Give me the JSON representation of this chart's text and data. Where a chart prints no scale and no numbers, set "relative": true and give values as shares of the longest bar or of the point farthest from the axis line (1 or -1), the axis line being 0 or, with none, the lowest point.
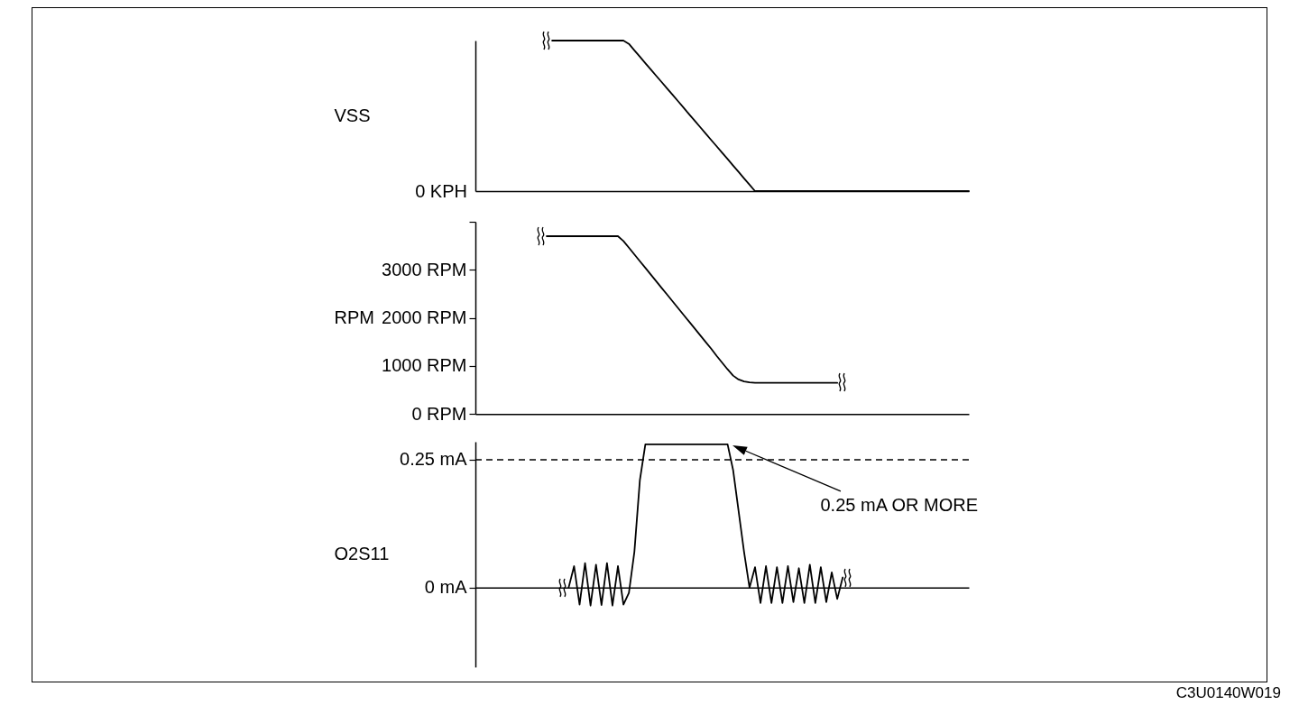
{
  "chart_data": [
    {
      "type": "line",
      "ylabel": "VSS",
      "relative": true,
      "tick_labels": false,
      "categories": [
        null,
        null,
        null,
        null,
        null,
        null,
        null,
        null,
        null,
        null,
        null,
        null,
        null,
        null,
        null,
        null,
        null,
        null,
        null,
        null,
        null,
        null,
        null,
        null,
        null,
        null,
        null,
        null,
        null,
        null,
        null,
        null,
        null,
        null,
        null,
        null,
        null,
        null,
        null,
        null,
        null,
        null,
        null,
        null,
        null,
        null,
        null,
        null,
        null,
        null,
        null,
        null,
        null,
        null,
        null,
        null,
        null,
        null,
        null,
        null,
        null,
        null,
        null,
        null,
        null,
        null,
        null,
        null,
        null,
        null,
        null,
        null,
        null,
        null,
        null,
        null,
        null,
        null,
        null,
        null,
        null,
        null,
        null,
        null,
        null,
        null,
        null,
        null,
        null,
        null,
        null
      ],
      "series": [
        {
          "color": "#000000",
          "values": [
            null,
            null,
            null,
            null,
            null,
            null,
            null,
            null,
            null,
            null,
            null,
            null,
            null,
            null,
            1,
            1,
            1,
            1,
            1,
            1,
            1,
            1,
            1,
            1,
            1,
            1,
            1,
            1,
            0.978,
            0.935,
            0.893,
            0.85,
            0.808,
            0.765,
            0.723,
            0.68,
            0.638,
            0.596,
            0.553,
            0.51,
            0.468,
            0.425,
            0.383,
            0.34,
            0.298,
            0.255,
            0.213,
            0.17,
            0.128,
            0.085,
            0.043,
            0,
            0,
            0,
            0,
            0,
            0,
            0,
            0,
            0,
            0,
            0,
            0,
            0,
            0,
            0,
            0,
            0,
            0,
            0,
            0,
            0,
            0,
            0,
            0,
            0,
            0,
            0,
            0,
            0,
            0,
            0,
            0,
            0,
            0,
            0,
            0,
            0,
            0,
            0,
            0
          ]
        }
      ],
      "annotations": [
        "0 KPH"
      ]
    },
    {
      "type": "line",
      "ylabel": "RPM",
      "tick_labels": "y",
      "categories": [
        null,
        null,
        null,
        null,
        null,
        null,
        null,
        null,
        null,
        null,
        null,
        null,
        null,
        null,
        null,
        null,
        null,
        null,
        null,
        null,
        null,
        null,
        null,
        null,
        null,
        null,
        null,
        null,
        null,
        null,
        null,
        null,
        null,
        null,
        null,
        null,
        null,
        null,
        null,
        null,
        null,
        null,
        null,
        null,
        null,
        null,
        null,
        null,
        null,
        null,
        null,
        null,
        null,
        null,
        null,
        null,
        null,
        null,
        null,
        null,
        null,
        null,
        null,
        null,
        null,
        null,
        null,
        null,
        null,
        null,
        null,
        null,
        null,
        null,
        null,
        null,
        null,
        null,
        null,
        null,
        null,
        null,
        null,
        null,
        null,
        null,
        null,
        null,
        null,
        null,
        null
      ],
      "series": [
        {
          "color": "#000000",
          "values": [
            null,
            null,
            null,
            null,
            null,
            null,
            null,
            null,
            null,
            null,
            null,
            null,
            null,
            3700,
            3700,
            3700,
            3700,
            3700,
            3700,
            3700,
            3700,
            3700,
            3700,
            3700,
            3700,
            3700,
            3700,
            3600,
            3460,
            3320,
            3180,
            3040,
            2900,
            2760,
            2620,
            2480,
            2340,
            2200,
            2060,
            1920,
            1780,
            1640,
            1500,
            1360,
            1210,
            1070,
            930,
            800,
            720,
            680,
            660,
            650,
            650,
            650,
            650,
            650,
            650,
            650,
            650,
            650,
            650,
            650,
            650,
            650,
            650,
            650,
            650,
            null,
            null,
            null,
            null,
            null,
            null,
            null,
            null,
            null,
            null,
            null,
            null,
            null,
            null,
            null,
            null,
            null,
            null,
            null,
            null,
            null,
            null,
            null,
            null
          ]
        }
      ],
      "ylim": [
        0,
        4000
      ],
      "yticks": [
        {
          "value": 0,
          "label": "0 RPM"
        },
        {
          "value": 1000,
          "label": "1000 RPM"
        },
        {
          "value": 2000,
          "label": "2000 RPM"
        },
        {
          "value": 3000,
          "label": "3000 RPM"
        },
        {
          "value": 4000,
          "label": null
        }
      ]
    },
    {
      "type": "line",
      "ylabel": "O2S11",
      "tick_labels": "y",
      "categories": [
        null,
        null,
        null,
        null,
        null,
        null,
        null,
        null,
        null,
        null,
        null,
        null,
        null,
        null,
        null,
        null,
        null,
        null,
        null,
        null,
        null,
        null,
        null,
        null,
        null,
        null,
        null,
        null,
        null,
        null,
        null,
        null,
        null,
        null,
        null,
        null,
        null,
        null,
        null,
        null,
        null,
        null,
        null,
        null,
        null,
        null,
        null,
        null,
        null,
        null,
        null,
        null,
        null,
        null,
        null,
        null,
        null,
        null,
        null,
        null,
        null,
        null,
        null,
        null,
        null,
        null,
        null,
        null,
        null,
        null,
        null,
        null,
        null,
        null,
        null,
        null,
        null,
        null,
        null,
        null,
        null,
        null,
        null,
        null,
        null,
        null,
        null,
        null,
        null,
        null,
        null
      ],
      "series": [
        {
          "color": "#000000",
          "values": [
            null,
            null,
            null,
            null,
            null,
            null,
            null,
            null,
            null,
            null,
            null,
            null,
            null,
            null,
            null,
            null,
            null,
            0,
            0.042,
            -0.033,
            0.048,
            -0.035,
            0.045,
            -0.034,
            0.048,
            -0.035,
            0.042,
            -0.033,
            -0.01,
            0.07,
            0.21,
            0.28,
            0.28,
            0.28,
            0.28,
            0.28,
            0.28,
            0.28,
            0.28,
            0.28,
            0.28,
            0.28,
            0.28,
            0.28,
            0.28,
            0.28,
            0.28,
            0.23,
            0.15,
            0.07,
            0,
            0.04,
            -0.03,
            0.042,
            -0.03,
            0.04,
            -0.03,
            0.042,
            -0.028,
            0.038,
            -0.03,
            0.045,
            -0.03,
            0.04,
            -0.028,
            0.03,
            -0.022,
            0.02,
            null,
            null,
            null,
            null,
            null,
            null,
            null,
            null,
            null,
            null,
            null,
            null,
            null,
            null,
            null,
            null,
            null,
            null,
            null,
            null,
            null,
            null,
            null
          ]
        }
      ],
      "ylim": [
        -0.155,
        0.285
      ],
      "yticks": [
        {
          "value": 0,
          "label": "0 mA"
        },
        {
          "value": 0.25,
          "label": "0.25 mA"
        }
      ],
      "ref_lines": [
        {
          "axis": "y",
          "value": 0.25,
          "line_style": "dashed",
          "color": "#000000"
        }
      ],
      "annotations": [
        "0.25 mA OR MORE",
        "C3U0140W019"
      ]
    }
  ]
}
